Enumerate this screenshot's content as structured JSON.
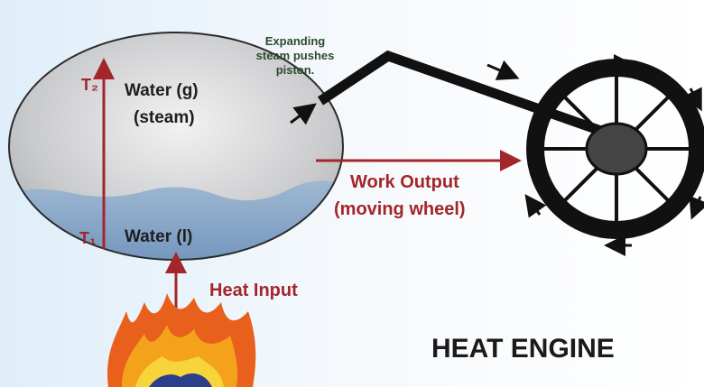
{
  "diagram": {
    "title": "HEAT ENGINE",
    "piston_note": [
      "Expanding",
      "steam pushes",
      "piston."
    ],
    "temp_high": "T₂",
    "temp_low": "T₁",
    "steam_label": [
      "Water (g)",
      "(steam)"
    ],
    "liquid_label": "Water (l)",
    "heat_label": "Heat Input",
    "work_label": [
      "Work Output",
      "(moving wheel)"
    ]
  }
}
